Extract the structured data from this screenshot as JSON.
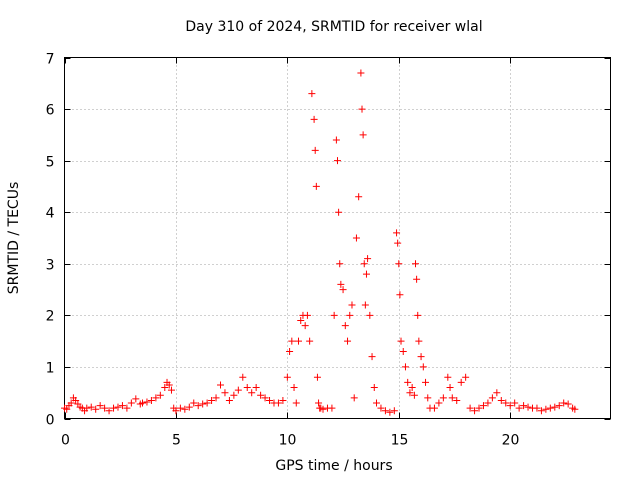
{
  "chart_data": {
    "type": "scatter",
    "title": "Day 310 of 2024, SRMTID for receiver wlal",
    "xlabel": "GPS time / hours",
    "ylabel": "SRMTID / TECUs",
    "xlim": [
      0,
      24.5
    ],
    "ylim": [
      0,
      7
    ],
    "xticks": [
      0,
      5,
      10,
      15,
      20
    ],
    "yticks": [
      0,
      1,
      2,
      3,
      4,
      5,
      6,
      7
    ],
    "grid": true,
    "marker": "+",
    "color": "#ff0000",
    "series": [
      {
        "name": "SRMTID",
        "x": [
          0.0,
          0.1,
          0.2,
          0.3,
          0.4,
          0.5,
          0.6,
          0.7,
          0.8,
          0.9,
          1.0,
          1.2,
          1.4,
          1.6,
          1.8,
          2.0,
          2.2,
          2.4,
          2.6,
          2.8,
          3.0,
          3.2,
          3.4,
          3.5,
          3.7,
          3.9,
          4.1,
          4.3,
          4.5,
          4.6,
          4.7,
          4.8,
          4.9,
          5.0,
          5.2,
          5.4,
          5.6,
          5.8,
          6.0,
          6.2,
          6.4,
          6.6,
          6.8,
          7.0,
          7.2,
          7.4,
          7.6,
          7.8,
          8.0,
          8.2,
          8.4,
          8.6,
          8.8,
          9.0,
          9.2,
          9.4,
          9.6,
          9.8,
          10.0,
          10.1,
          10.2,
          10.3,
          10.4,
          10.5,
          10.6,
          10.7,
          10.8,
          10.9,
          11.0,
          11.1,
          11.2,
          11.25,
          11.3,
          11.35,
          11.4,
          11.45,
          11.5,
          11.6,
          11.8,
          12.0,
          12.1,
          12.2,
          12.25,
          12.3,
          12.35,
          12.4,
          12.5,
          12.6,
          12.7,
          12.8,
          12.9,
          13.0,
          13.1,
          13.2,
          13.3,
          13.35,
          13.4,
          13.45,
          13.5,
          13.55,
          13.6,
          13.7,
          13.8,
          13.9,
          14.0,
          14.2,
          14.4,
          14.6,
          14.8,
          14.9,
          14.95,
          15.0,
          15.05,
          15.1,
          15.2,
          15.3,
          15.4,
          15.5,
          15.6,
          15.7,
          15.75,
          15.8,
          15.85,
          15.9,
          16.0,
          16.1,
          16.2,
          16.3,
          16.4,
          16.6,
          16.8,
          17.0,
          17.2,
          17.3,
          17.4,
          17.6,
          17.8,
          18.0,
          18.2,
          18.4,
          18.6,
          18.8,
          19.0,
          19.2,
          19.4,
          19.6,
          19.8,
          20.0,
          20.2,
          20.4,
          20.6,
          20.8,
          21.0,
          21.2,
          21.4,
          21.6,
          21.8,
          22.0,
          22.2,
          22.4,
          22.6,
          22.8,
          22.9
        ],
        "y": [
          0.2,
          0.18,
          0.25,
          0.3,
          0.4,
          0.35,
          0.28,
          0.22,
          0.2,
          0.15,
          0.2,
          0.22,
          0.18,
          0.25,
          0.2,
          0.15,
          0.2,
          0.22,
          0.25,
          0.2,
          0.3,
          0.38,
          0.28,
          0.3,
          0.32,
          0.35,
          0.4,
          0.45,
          0.6,
          0.7,
          0.65,
          0.55,
          0.2,
          0.15,
          0.2,
          0.18,
          0.22,
          0.3,
          0.25,
          0.28,
          0.3,
          0.35,
          0.4,
          0.65,
          0.5,
          0.35,
          0.45,
          0.55,
          0.8,
          0.6,
          0.5,
          0.6,
          0.45,
          0.4,
          0.35,
          0.3,
          0.3,
          0.35,
          0.8,
          1.3,
          1.5,
          0.6,
          0.3,
          1.5,
          1.9,
          2.0,
          1.8,
          2.0,
          1.5,
          6.3,
          5.8,
          5.2,
          4.5,
          0.8,
          0.3,
          0.2,
          0.2,
          0.18,
          0.2,
          0.2,
          2.0,
          5.4,
          5.0,
          4.0,
          3.0,
          2.6,
          2.5,
          1.8,
          1.5,
          2.0,
          2.2,
          0.4,
          3.5,
          4.3,
          6.7,
          6.0,
          5.5,
          3.0,
          2.2,
          2.8,
          3.1,
          2.0,
          1.2,
          0.6,
          0.3,
          0.2,
          0.15,
          0.12,
          0.15,
          3.6,
          3.4,
          3.0,
          2.4,
          1.5,
          1.3,
          1.0,
          0.7,
          0.5,
          0.6,
          0.45,
          3.0,
          2.7,
          2.0,
          1.5,
          1.2,
          1.0,
          0.7,
          0.4,
          0.2,
          0.2,
          0.3,
          0.4,
          0.8,
          0.6,
          0.4,
          0.35,
          0.7,
          0.8,
          0.2,
          0.15,
          0.2,
          0.25,
          0.3,
          0.4,
          0.5,
          0.35,
          0.3,
          0.25,
          0.3,
          0.2,
          0.25,
          0.22,
          0.2,
          0.2,
          0.15,
          0.18,
          0.2,
          0.22,
          0.25,
          0.3,
          0.28,
          0.2,
          0.18
        ]
      }
    ]
  }
}
